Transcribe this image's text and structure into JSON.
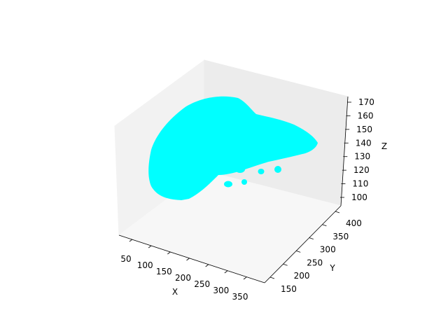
{
  "chart_data": {
    "type": "surface3d",
    "title": "",
    "xlabel": "X",
    "ylabel": "Y",
    "zlabel": "Z",
    "xticks": [
      50,
      100,
      150,
      200,
      250,
      300,
      350
    ],
    "yticks": [
      150,
      200,
      250,
      300,
      350,
      400
    ],
    "zticks": [
      100,
      110,
      120,
      130,
      140,
      150,
      160,
      170
    ],
    "surface_color": "#00ffff",
    "pane_colors": {
      "left": "#f2f2f2",
      "right": "#ececec",
      "floor": "#f7f7f7"
    },
    "grid": false
  }
}
